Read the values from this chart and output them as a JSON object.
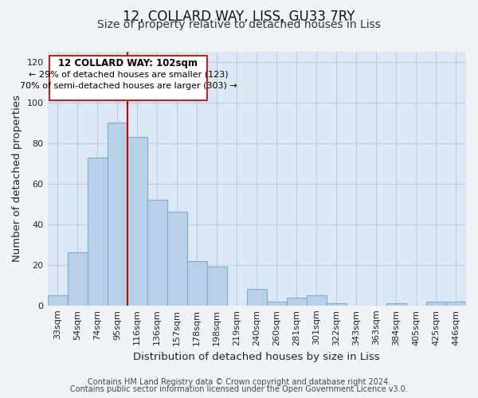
{
  "title": "12, COLLARD WAY, LISS, GU33 7RY",
  "subtitle": "Size of property relative to detached houses in Liss",
  "xlabel": "Distribution of detached houses by size in Liss",
  "ylabel": "Number of detached properties",
  "footnote1": "Contains HM Land Registry data © Crown copyright and database right 2024.",
  "footnote2": "Contains public sector information licensed under the Open Government Licence v3.0.",
  "bar_labels": [
    "33sqm",
    "54sqm",
    "74sqm",
    "95sqm",
    "116sqm",
    "136sqm",
    "157sqm",
    "178sqm",
    "198sqm",
    "219sqm",
    "240sqm",
    "260sqm",
    "281sqm",
    "301sqm",
    "322sqm",
    "343sqm",
    "363sqm",
    "384sqm",
    "405sqm",
    "425sqm",
    "446sqm"
  ],
  "bar_values": [
    5,
    26,
    73,
    90,
    83,
    52,
    46,
    22,
    19,
    0,
    8,
    2,
    4,
    5,
    1,
    0,
    0,
    1,
    0,
    2,
    2
  ],
  "bar_color": "#b8d0e8",
  "bar_edge_color": "#7aaed0",
  "annotation_line1": "12 COLLARD WAY: 102sqm",
  "annotation_line2": "← 29% of detached houses are smaller (123)",
  "annotation_line3": "70% of semi-detached houses are larger (303) →",
  "ylim": [
    0,
    125
  ],
  "yticks": [
    0,
    20,
    40,
    60,
    80,
    100,
    120
  ],
  "background_color": "#f0f4f8",
  "plot_bg_color": "#dce8f4",
  "grid_color": "#b8cce4",
  "title_fontsize": 12,
  "subtitle_fontsize": 10,
  "axis_label_fontsize": 9.5,
  "tick_fontsize": 8,
  "footnote_fontsize": 7
}
